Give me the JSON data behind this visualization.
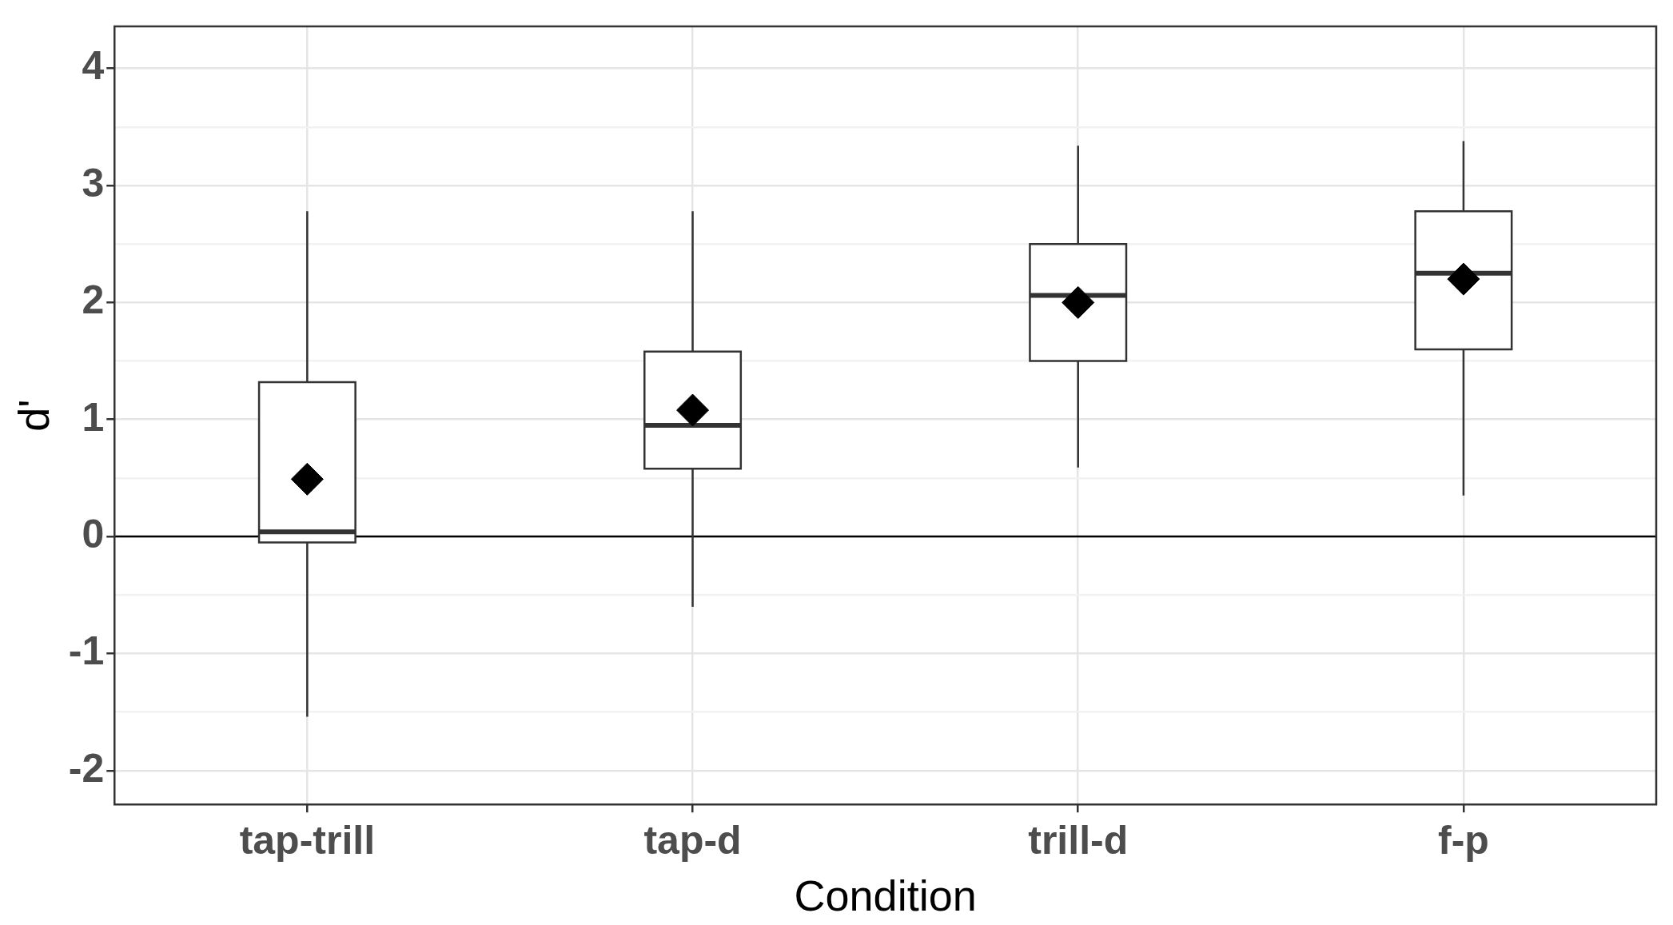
{
  "chart_data": {
    "type": "box",
    "xlabel": "Condition",
    "ylabel": "d'",
    "categories": [
      "tap-trill",
      "tap-d",
      "trill-d",
      "f-p"
    ],
    "boxes": [
      {
        "low": -1.54,
        "q1": -0.05,
        "median": 0.04,
        "q3": 1.32,
        "high": 2.78,
        "mean": 0.49
      },
      {
        "low": -0.6,
        "q1": 0.58,
        "median": 0.95,
        "q3": 1.58,
        "high": 2.78,
        "mean": 1.08
      },
      {
        "low": 0.59,
        "q1": 1.5,
        "median": 2.06,
        "q3": 2.5,
        "high": 3.34,
        "mean": 2.0
      },
      {
        "low": 0.35,
        "q1": 1.6,
        "median": 2.25,
        "q3": 2.78,
        "high": 3.38,
        "mean": 2.2
      }
    ],
    "ylim": [
      -2.29,
      4.36
    ],
    "yticks": [
      -2,
      {
        "value": -1.5,
        "label": null
      },
      -1,
      {
        "value": -0.5,
        "label": null
      },
      0,
      {
        "value": 0.5,
        "label": null
      },
      1,
      {
        "value": 1.5,
        "label": null
      },
      2,
      {
        "value": 2.5,
        "label": null
      },
      3,
      {
        "value": 3.5,
        "label": null
      },
      4
    ],
    "ref_lines": [
      {
        "axis": "y",
        "value": 0,
        "color": "#000000"
      }
    ],
    "grid": true,
    "legend": false,
    "marker": "diamond"
  }
}
